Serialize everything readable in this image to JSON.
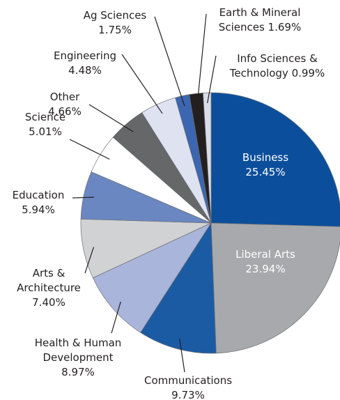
{
  "chart_data": {
    "type": "pie",
    "categories": [
      "Business",
      "Liberal Arts",
      "Communications",
      "Health & Human Development",
      "Arts & Architecture",
      "Education",
      "Science",
      "Other",
      "Engineering",
      "Ag Sciences",
      "Earth & Mineral Sciences",
      "Info Sciences & Technology"
    ],
    "values": [
      25.45,
      23.94,
      9.73,
      8.97,
      7.4,
      5.94,
      5.01,
      4.66,
      4.48,
      1.75,
      1.69,
      0.99
    ],
    "value_labels": [
      "25.45%",
      "23.94%",
      "9.73%",
      "8.97%",
      "7.40%",
      "5.94%",
      "5.01%",
      "4.66%",
      "4.48%",
      "1.75%",
      "1.69%",
      "0.99%"
    ],
    "colors": [
      "#0b4f9c",
      "#a7a9ac",
      "#1b5ba3",
      "#a9b5da",
      "#d1d2d4",
      "#6a87c2",
      "#ffffff",
      "#666768",
      "#dfe2f1",
      "#3b66b1",
      "#231f20",
      "#d9dcea"
    ]
  }
}
